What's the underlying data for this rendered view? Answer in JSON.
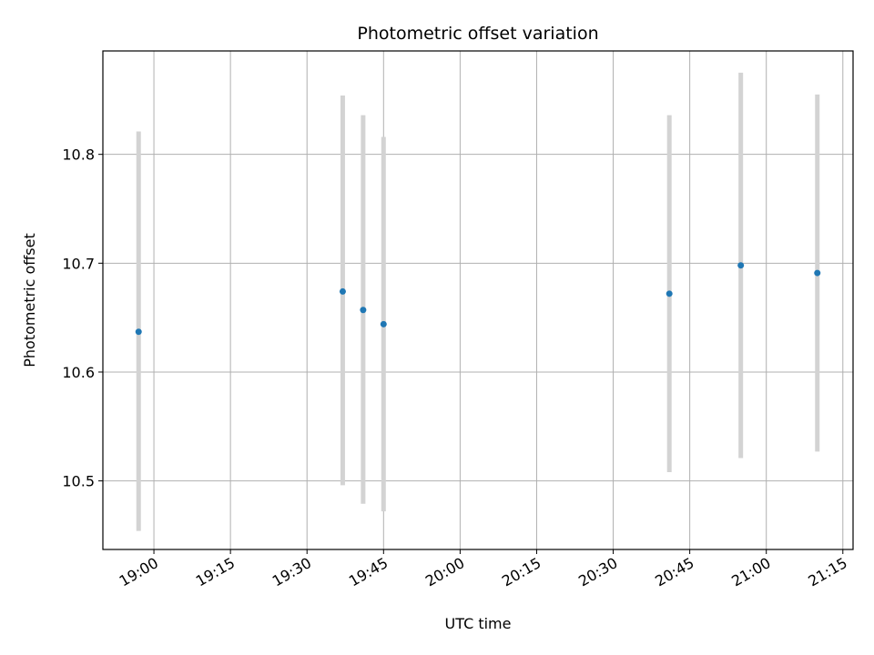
{
  "chart_data": {
    "type": "scatter",
    "title": "Photometric offset variation",
    "xlabel": "UTC time",
    "ylabel": "Photometric offset",
    "x_type": "time",
    "xlim": [
      "18:50",
      "21:17"
    ],
    "ylim": [
      10.437,
      10.895
    ],
    "x_ticks": [
      "19:00",
      "19:15",
      "19:30",
      "19:45",
      "20:00",
      "20:15",
      "20:30",
      "20:45",
      "21:00",
      "21:15"
    ],
    "y_ticks": [
      10.5,
      10.6,
      10.7,
      10.8
    ],
    "grid": true,
    "point_color": "#1f77b4",
    "errorbar_color": "#d3d3d3",
    "series": [
      {
        "points": [
          {
            "x": "18:57",
            "y": 10.637,
            "err_low": 10.454,
            "err_high": 10.821
          },
          {
            "x": "19:37",
            "y": 10.674,
            "err_low": 10.496,
            "err_high": 10.854
          },
          {
            "x": "19:41",
            "y": 10.657,
            "err_low": 10.479,
            "err_high": 10.836
          },
          {
            "x": "19:45",
            "y": 10.644,
            "err_low": 10.472,
            "err_high": 10.816
          },
          {
            "x": "20:41",
            "y": 10.672,
            "err_low": 10.508,
            "err_high": 10.836
          },
          {
            "x": "20:55",
            "y": 10.698,
            "err_low": 10.521,
            "err_high": 10.875
          },
          {
            "x": "21:10",
            "y": 10.691,
            "err_low": 10.527,
            "err_high": 10.855
          }
        ]
      }
    ]
  }
}
